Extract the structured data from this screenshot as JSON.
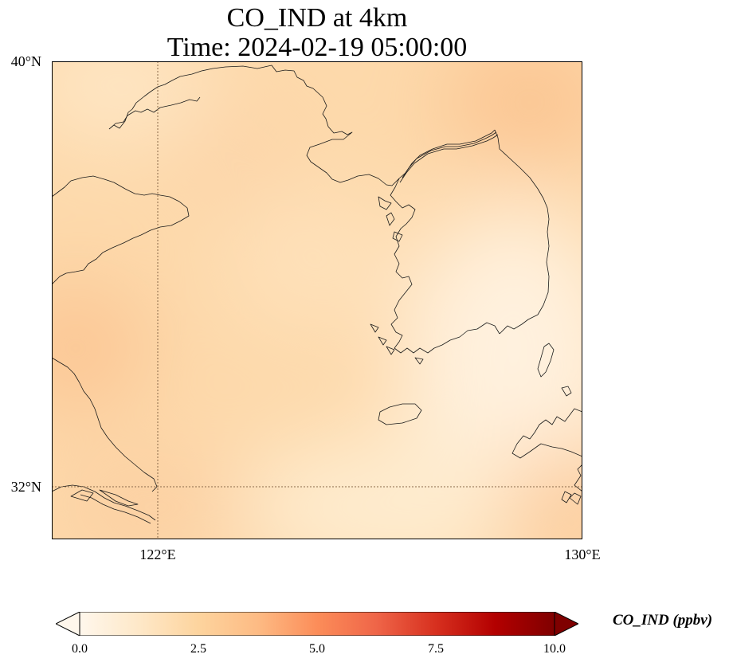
{
  "title": {
    "line1": "CO_IND at 4km",
    "line2": "Time: 2024-02-19 05:00:00"
  },
  "map": {
    "extent": {
      "lon_min": 120,
      "lon_max": 130,
      "lat_min": 31,
      "lat_max": 40
    },
    "gridlines": {
      "lons": [
        122
      ],
      "lats": [
        32
      ],
      "style": "dotted"
    },
    "yticks": [
      {
        "lat": 40,
        "label": "40°N"
      },
      {
        "lat": 32,
        "label": "32°N"
      }
    ],
    "xticks": [
      {
        "lon": 122,
        "label": "122°E"
      },
      {
        "lon": 130,
        "label": "130°E"
      }
    ],
    "field_level": "low, roughly 1–3.5 ppbv across domain"
  },
  "colorbar": {
    "label": "CO_IND (ppbv)",
    "min": 0,
    "max": 10,
    "extend": "both",
    "cmap": "OrRd",
    "colors": [
      "#fff7ec",
      "#fee8c8",
      "#fdd49e",
      "#fdbb84",
      "#fc8d59",
      "#ef6548",
      "#d7301f",
      "#b30000",
      "#7f0000"
    ],
    "ticks": [
      {
        "value": 0,
        "label": "0.0"
      },
      {
        "value": 2.5,
        "label": "2.5"
      },
      {
        "value": 5,
        "label": "5.0"
      },
      {
        "value": 7.5,
        "label": "7.5"
      },
      {
        "value": 10,
        "label": "10.0"
      }
    ]
  }
}
